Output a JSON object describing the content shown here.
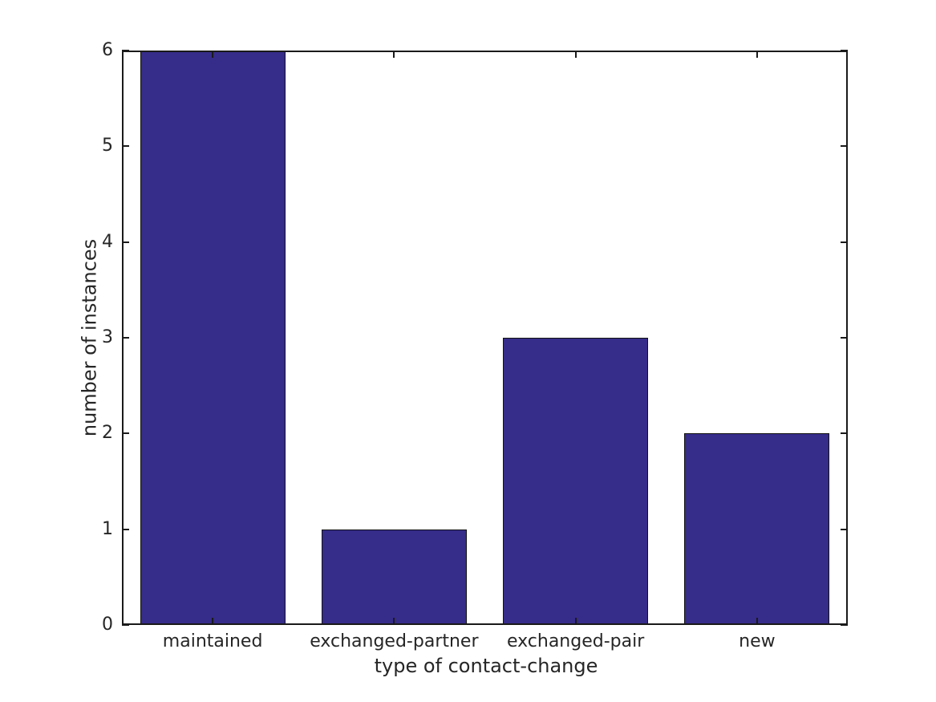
{
  "chart_data": {
    "type": "bar",
    "categories": [
      "maintained",
      "exchanged-partner",
      "exchanged-pair",
      "new"
    ],
    "values": [
      6,
      1,
      3,
      2
    ],
    "title": "",
    "xlabel": "type of contact-change",
    "ylabel": "number of instances",
    "ylim": [
      0,
      6
    ],
    "yticks": [
      "0",
      "1",
      "2",
      "3",
      "4",
      "5",
      "6"
    ],
    "bar_width_fraction": 0.8,
    "grid": false,
    "legend": "none",
    "tick_style": "inward-mirrored",
    "colors": {
      "bar_fill": "#362C8A",
      "bar_edge": "#121212",
      "axis": "#1a1a1a",
      "text": "#262626",
      "background": "#ffffff"
    }
  }
}
